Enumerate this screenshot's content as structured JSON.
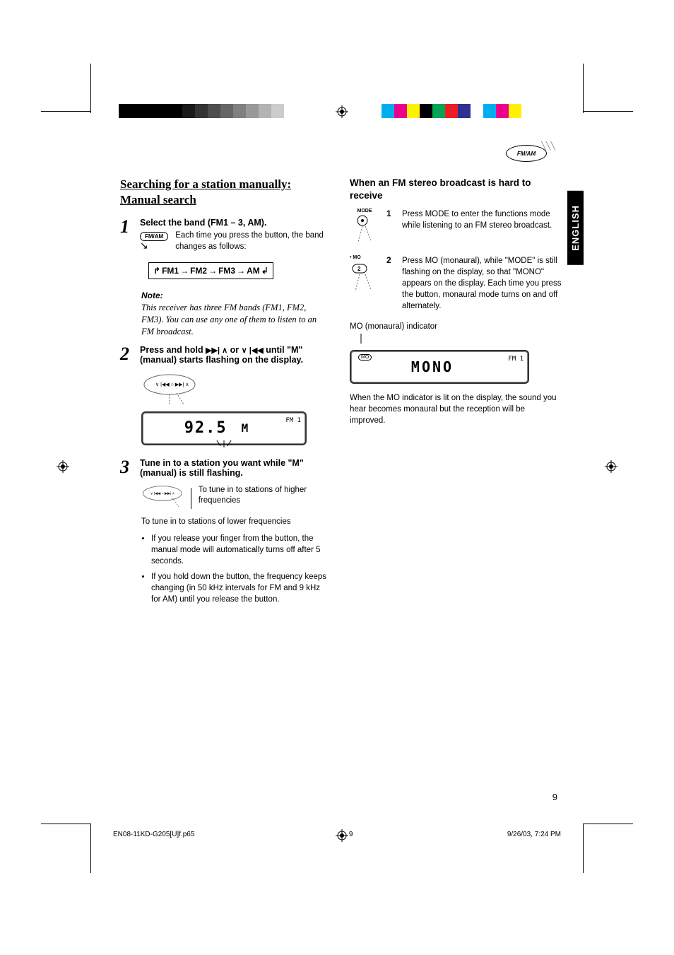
{
  "registration_bars": {
    "left_swatches": [
      "#000000",
      "#000000",
      "#000000",
      "#000000",
      "#000000",
      "#1a1a1a",
      "#333333",
      "#4d4d4d",
      "#666666",
      "#808080",
      "#999999",
      "#b3b3b3",
      "#cccccc",
      "#ffffff"
    ],
    "right_swatches": [
      "#00aeef",
      "#ec008c",
      "#fff200",
      "#000000",
      "#00a651",
      "#ed1c24",
      "#2e3192",
      "#ffffff",
      "#00aeef",
      "#ec008c",
      "#fff200"
    ]
  },
  "logo_text": "FM/AM",
  "lang_tab": "ENGLISH",
  "left": {
    "title": "Searching for a station manually: Manual search",
    "step1": {
      "num": "1",
      "head": "Select the band (FM1 – 3, AM).",
      "button_label": "FM/AM",
      "desc": "Each time you press the button, the band changes as follows:",
      "cycle": [
        "FM1",
        "FM2",
        "FM3",
        "AM"
      ]
    },
    "note_label": "Note:",
    "note_body": "This receiver has three FM bands (FM1, FM2, FM3). You can use any one of them to listen to an FM broadcast.",
    "step2": {
      "num": "2",
      "head_pre": "Press and hold ",
      "head_mid": " or ",
      "head_post": " until \"M\" (manual) starts flashing on the display.",
      "lcd_main": "92.5",
      "lcd_side_top": "FM 1",
      "lcd_m": "M"
    },
    "step3": {
      "num": "3",
      "head": "Tune in to a station you want while \"M\" (manual) is still flashing.",
      "higher": "To tune in to stations of higher frequencies",
      "lower": "To tune in to stations of lower frequencies",
      "bullets": [
        "If you release your finger from the button, the manual mode will automatically turns off after 5 seconds.",
        "If you hold down the button, the frequency keeps changing (in 50 kHz intervals for FM and 9 kHz for AM) until you release the button."
      ]
    }
  },
  "right": {
    "subhead": "When an FM stereo broadcast is hard to receive",
    "item1": {
      "icon_label": "MODE",
      "num": "1",
      "text": "Press MODE to enter the functions mode while listening to an FM stereo broadcast."
    },
    "item2": {
      "icon_label": "MO",
      "icon_btn": "2",
      "num": "2",
      "text": "Press MO (monaural), while \"MODE\" is still flashing on the display, so that \"MONO\" appears on the display. Each time you press the button, monaural mode turns on and off alternately."
    },
    "mo_caption": "MO (monaural) indicator",
    "display": {
      "mo_badge": "MO",
      "lcd_main": "MONO",
      "lcd_side": "FM 1"
    },
    "result": "When the MO indicator is lit on the display, the sound you hear becomes monaural but the reception will be improved."
  },
  "page_number": "9",
  "footer": {
    "file": "EN08-11KD-G205[U]f.p65",
    "page": "9",
    "datetime": "9/26/03, 7:24 PM"
  }
}
